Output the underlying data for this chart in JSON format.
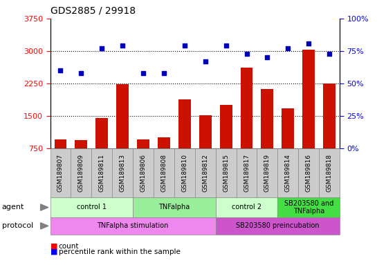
{
  "title": "GDS2885 / 29918",
  "samples": [
    "GSM189807",
    "GSM189809",
    "GSM189811",
    "GSM189813",
    "GSM189806",
    "GSM189808",
    "GSM189810",
    "GSM189812",
    "GSM189815",
    "GSM189817",
    "GSM189819",
    "GSM189814",
    "GSM189816",
    "GSM189818"
  ],
  "counts": [
    950,
    940,
    1460,
    2240,
    950,
    1010,
    1890,
    1510,
    1750,
    2620,
    2120,
    1680,
    3030,
    2250
  ],
  "percentiles": [
    60,
    58,
    77,
    79,
    58,
    58,
    79,
    67,
    79,
    73,
    70,
    77,
    81,
    73
  ],
  "agent_groups": [
    {
      "label": "control 1",
      "start": 0,
      "end": 3,
      "color": "#ccffcc"
    },
    {
      "label": "TNFalpha",
      "start": 4,
      "end": 7,
      "color": "#99ee99"
    },
    {
      "label": "control 2",
      "start": 8,
      "end": 10,
      "color": "#ccffcc"
    },
    {
      "label": "SB203580 and\nTNFalpha",
      "start": 11,
      "end": 13,
      "color": "#44dd44"
    }
  ],
  "protocol_groups": [
    {
      "label": "TNFalpha stimulation",
      "start": 0,
      "end": 7,
      "color": "#ee88ee"
    },
    {
      "label": "SB203580 preincubation",
      "start": 8,
      "end": 13,
      "color": "#cc55cc"
    }
  ],
  "bar_color": "#cc1100",
  "dot_color": "#0000bb",
  "ylim_left": [
    750,
    3750
  ],
  "ylim_right": [
    0,
    100
  ],
  "yticks_left": [
    750,
    1500,
    2250,
    3000,
    3750
  ],
  "yticks_right": [
    0,
    25,
    50,
    75,
    100
  ],
  "hlines": [
    1500,
    2250,
    3000
  ],
  "background_color": "#ffffff"
}
